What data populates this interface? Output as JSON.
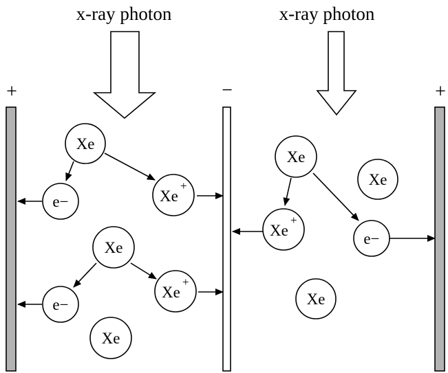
{
  "photon_labels": {
    "left": "x-ray photon",
    "right": "x-ray photon"
  },
  "electrode_signs": {
    "left": "+",
    "middle": "−",
    "right": "+"
  },
  "particles": {
    "xe_1": "Xe",
    "e_1": "e−",
    "ion_1_base": "Xe",
    "ion_1_charge": "+",
    "xe_2": "Xe",
    "e_2": "e−",
    "ion_2_base": "Xe",
    "ion_2_charge": "+",
    "xe_3": "Xe",
    "xe_4": "Xe",
    "ion_3_base": "Xe",
    "ion_3_charge": "+",
    "e_3": "e−",
    "xe_5": "Xe",
    "xe_6": "Xe"
  }
}
